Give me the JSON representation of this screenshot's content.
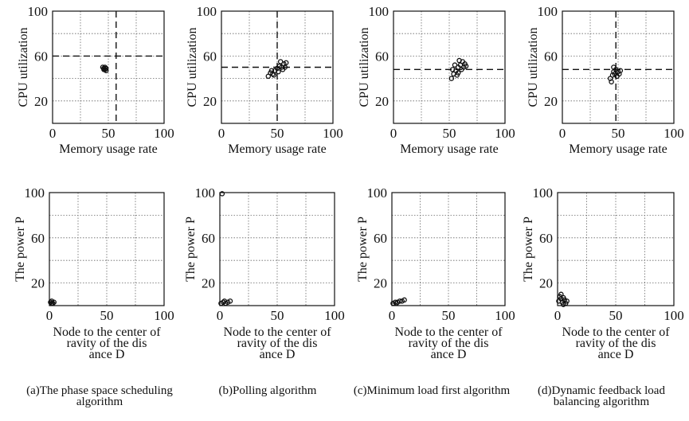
{
  "chart_data": [
    {
      "panel": "a",
      "type": "scatter",
      "xlabel": "Memory usage rate",
      "ylabel": "CPU utilization",
      "xlim": [
        0,
        100
      ],
      "ylim": [
        0,
        100
      ],
      "xticks": [
        "0",
        "50",
        "100"
      ],
      "yticks": [
        "20",
        "60",
        "100"
      ],
      "ref_x": 57,
      "ref_y": 60,
      "points": [
        [
          45,
          50
        ],
        [
          46,
          49
        ],
        [
          47,
          48
        ],
        [
          48,
          47
        ],
        [
          47,
          50
        ],
        [
          46,
          48
        ],
        [
          48,
          49
        ]
      ]
    },
    {
      "panel": "b",
      "type": "scatter",
      "xlabel": "Memory usage rate",
      "ylabel": "CPU utilization",
      "xlim": [
        0,
        100
      ],
      "ylim": [
        0,
        100
      ],
      "xticks": [
        "0",
        "50",
        "100"
      ],
      "yticks": [
        "20",
        "60",
        "100"
      ],
      "ref_x": 50,
      "ref_y": 50,
      "points": [
        [
          42,
          42
        ],
        [
          44,
          45
        ],
        [
          46,
          44
        ],
        [
          48,
          47
        ],
        [
          50,
          49
        ],
        [
          52,
          51
        ],
        [
          54,
          50
        ],
        [
          56,
          53
        ],
        [
          58,
          54
        ],
        [
          47,
          43
        ],
        [
          51,
          46
        ],
        [
          55,
          48
        ],
        [
          45,
          47
        ],
        [
          53,
          55
        ],
        [
          57,
          50
        ]
      ]
    },
    {
      "panel": "c",
      "type": "scatter",
      "xlabel": "Memory usage rate",
      "ylabel": "CPU utilization",
      "xlim": [
        0,
        100
      ],
      "ylim": [
        0,
        100
      ],
      "xticks": [
        "0",
        "50",
        "100"
      ],
      "yticks": [
        "20",
        "60",
        "100"
      ],
      "ref_x": null,
      "ref_y": 48,
      "points": [
        [
          52,
          40
        ],
        [
          54,
          44
        ],
        [
          56,
          47
        ],
        [
          58,
          50
        ],
        [
          60,
          52
        ],
        [
          62,
          55
        ],
        [
          64,
          53
        ],
        [
          55,
          52
        ],
        [
          57,
          43
        ],
        [
          61,
          48
        ],
        [
          63,
          50
        ],
        [
          59,
          56
        ],
        [
          53,
          48
        ],
        [
          65,
          51
        ],
        [
          58,
          45
        ]
      ]
    },
    {
      "panel": "d",
      "type": "scatter",
      "xlabel": "Memory usage rate",
      "ylabel": "CPU utilization",
      "xlim": [
        0,
        100
      ],
      "ylim": [
        0,
        100
      ],
      "xticks": [
        "0",
        "50",
        "100"
      ],
      "yticks": [
        "20",
        "60",
        "100"
      ],
      "ref_x": 48,
      "ref_y": 48,
      "points": [
        [
          43,
          40
        ],
        [
          45,
          43
        ],
        [
          46,
          46
        ],
        [
          47,
          44
        ],
        [
          48,
          48
        ],
        [
          50,
          46
        ],
        [
          44,
          37
        ],
        [
          49,
          42
        ],
        [
          52,
          47
        ],
        [
          46,
          50
        ],
        [
          51,
          44
        ]
      ]
    },
    {
      "panel": "a",
      "type": "scatter",
      "xlabel": "Node to the center of gravity of the distance D",
      "ylabel": "The power P",
      "xlim": [
        0,
        100
      ],
      "ylim": [
        0,
        100
      ],
      "xticks": [
        "0",
        "50",
        "100"
      ],
      "yticks": [
        "20",
        "60",
        "100"
      ],
      "caption": "(a)The phase space scheduling algorithm",
      "points": [
        [
          1,
          3
        ],
        [
          2,
          4
        ],
        [
          3,
          2
        ],
        [
          4,
          3
        ],
        [
          2,
          2
        ]
      ]
    },
    {
      "panel": "b",
      "type": "scatter",
      "xlabel": "Node to the center of gravity of the distance D",
      "ylabel": "The power P",
      "xlim": [
        0,
        100
      ],
      "ylim": [
        0,
        100
      ],
      "xticks": [
        "0",
        "50",
        "100"
      ],
      "yticks": [
        "20",
        "60",
        "100"
      ],
      "caption": "(b)Polling algorithm",
      "points": [
        [
          1,
          2
        ],
        [
          3,
          3
        ],
        [
          5,
          2
        ],
        [
          7,
          3
        ],
        [
          9,
          4
        ],
        [
          4,
          4
        ],
        [
          2,
          99
        ]
      ]
    },
    {
      "panel": "c",
      "type": "scatter",
      "xlabel": "Node to the center of gravity of the distance D",
      "ylabel": "The power P",
      "xlim": [
        0,
        100
      ],
      "ylim": [
        0,
        100
      ],
      "xticks": [
        "0",
        "50",
        "100"
      ],
      "yticks": [
        "20",
        "60",
        "100"
      ],
      "caption": "(c)Minimum load first algorithm",
      "points": [
        [
          1,
          2
        ],
        [
          3,
          3
        ],
        [
          5,
          3
        ],
        [
          7,
          4
        ],
        [
          9,
          4
        ],
        [
          11,
          5
        ],
        [
          4,
          2
        ]
      ]
    },
    {
      "panel": "d",
      "type": "scatter",
      "xlabel": "Node to the center of gravity of the distance D",
      "ylabel": "The power P",
      "xlim": [
        0,
        100
      ],
      "ylim": [
        0,
        100
      ],
      "xticks": [
        "0",
        "50",
        "100"
      ],
      "yticks": [
        "20",
        "60",
        "100"
      ],
      "caption": "(d)Dynamic feedback load balancing algorithm",
      "points": [
        [
          1,
          4
        ],
        [
          2,
          8
        ],
        [
          3,
          6
        ],
        [
          4,
          3
        ],
        [
          5,
          7
        ],
        [
          6,
          5
        ],
        [
          7,
          2
        ],
        [
          3,
          10
        ],
        [
          8,
          4
        ],
        [
          5,
          1
        ]
      ]
    }
  ]
}
